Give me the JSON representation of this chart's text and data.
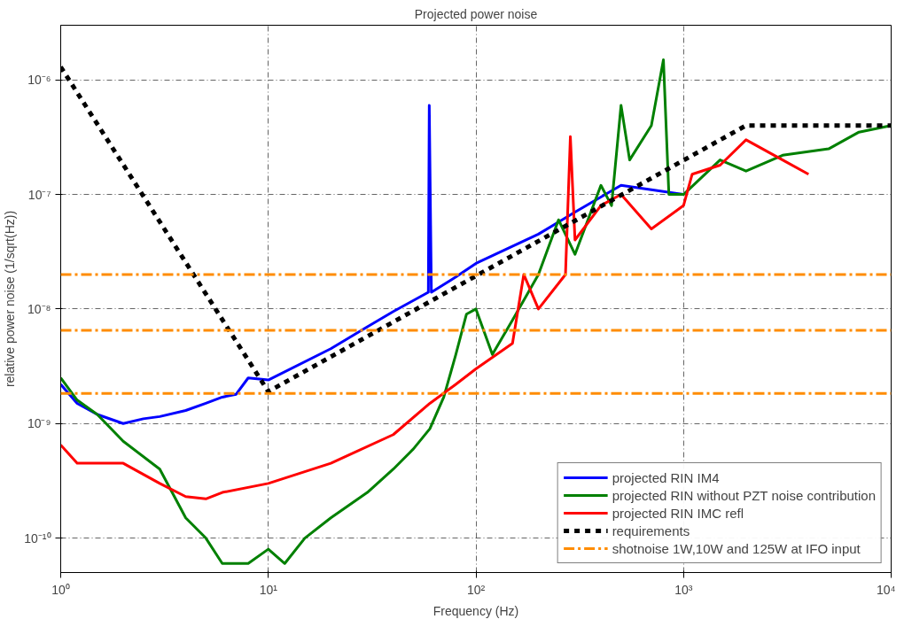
{
  "chart_data": {
    "type": "line",
    "title": "Projected power noise",
    "xlabel": "Frequency (Hz)",
    "ylabel": "relative power noise (1/sqrt(Hz))",
    "log": "xy",
    "grid": true,
    "legend": "bottom right",
    "line_style": "solid",
    "xlim": [
      1,
      10000
    ],
    "ylim": [
      5e-11,
      3e-06
    ],
    "xticks": [
      {
        "value": 1,
        "label": "10⁰"
      },
      {
        "value": 10,
        "label": "10¹"
      },
      {
        "value": 100,
        "label": "10²"
      },
      {
        "value": 1000,
        "label": "10³"
      },
      {
        "value": 10000,
        "label": "10⁴"
      }
    ],
    "yticks": [
      {
        "value": 1e-10,
        "label": "10⁻¹⁰"
      },
      {
        "value": 1e-09,
        "label": "10⁻⁹"
      },
      {
        "value": 1e-08,
        "label": "10⁻⁸"
      },
      {
        "value": 1e-07,
        "label": "10⁻⁷"
      },
      {
        "value": 1e-06,
        "label": "10⁻⁶"
      }
    ],
    "series": [
      {
        "name": "projected RIN IM4",
        "color": "#0000ff",
        "x": [
          1,
          1.2,
          1.5,
          2,
          2.5,
          3,
          4,
          5,
          6,
          7,
          8,
          10,
          20,
          30,
          40,
          59,
          59.6,
          61,
          80,
          100,
          200,
          300,
          500,
          700,
          1000
        ],
        "values": [
          2.2e-09,
          1.5e-09,
          1.2e-09,
          1e-09,
          1.1e-09,
          1.15e-09,
          1.3e-09,
          1.5e-09,
          1.7e-09,
          1.8e-09,
          2.5e-09,
          2.4e-09,
          4.5e-09,
          7e-09,
          9.5e-09,
          1.4e-08,
          6e-07,
          1.4e-08,
          1.9e-08,
          2.5e-08,
          4.5e-08,
          7e-08,
          1.2e-07,
          1.1e-07,
          1e-07
        ]
      },
      {
        "name": "projected RIN without PZT noise contribution",
        "color": "#008000",
        "x": [
          1,
          1.2,
          1.5,
          2,
          3,
          4,
          5,
          6,
          8,
          10,
          12,
          15,
          20,
          30,
          40,
          50,
          60,
          70,
          80,
          90,
          100,
          120,
          150,
          200,
          250,
          300,
          400,
          450,
          500,
          550,
          700,
          800,
          850,
          1000,
          1500,
          2000,
          3000,
          5000,
          7000,
          10000
        ],
        "values": [
          2.5e-09,
          1.6e-09,
          1.2e-09,
          7e-10,
          4e-10,
          1.5e-10,
          1e-10,
          6e-11,
          6e-11,
          8e-11,
          6e-11,
          1e-10,
          1.5e-10,
          2.5e-10,
          4e-10,
          6e-10,
          9e-10,
          1.7e-09,
          4e-09,
          9e-09,
          1e-08,
          4e-09,
          8e-09,
          2e-08,
          6e-08,
          3e-08,
          1.2e-07,
          8e-08,
          6e-07,
          2e-07,
          4e-07,
          1.5e-06,
          1e-07,
          1e-07,
          2e-07,
          1.6e-07,
          2.2e-07,
          2.5e-07,
          3.5e-07,
          4e-07
        ]
      },
      {
        "name": "projected RIN IMC refl",
        "color": "#ff0000",
        "x": [
          1,
          1.2,
          2,
          3,
          4,
          5,
          6,
          10,
          20,
          40,
          60,
          80,
          100,
          150,
          170,
          200,
          270,
          285,
          300,
          400,
          500,
          700,
          1000,
          1100,
          1500,
          2000,
          3000,
          4000
        ],
        "values": [
          6.5e-10,
          4.5e-10,
          4.5e-10,
          3e-10,
          2.3e-10,
          2.2e-10,
          2.5e-10,
          3e-10,
          4.5e-10,
          8e-10,
          1.5e-09,
          2.2e-09,
          3e-09,
          5e-09,
          2e-08,
          1e-08,
          2e-08,
          3.2e-07,
          4e-08,
          8e-08,
          1e-07,
          5e-08,
          8e-08,
          1.5e-07,
          1.8e-07,
          3e-07,
          2e-07,
          1.5e-07
        ]
      },
      {
        "name": "requirements",
        "color": "#000000",
        "line_style": "dashed",
        "x": [
          1,
          10,
          2000,
          10000
        ],
        "values": [
          1.3e-06,
          1.9e-09,
          4e-07,
          4e-07
        ]
      }
    ],
    "ref_lines": [
      {
        "axis": "y",
        "value": 2e-08,
        "label": "shotnoise 1W,10W and 125W at IFO input",
        "color": "#ff8c00",
        "line_style": "dashed"
      },
      {
        "axis": "y",
        "value": 6.5e-09,
        "color": "#ff8c00",
        "line_style": "dashed"
      },
      {
        "axis": "y",
        "value": 1.83e-09,
        "color": "#ff8c00",
        "line_style": "dashed"
      }
    ]
  }
}
